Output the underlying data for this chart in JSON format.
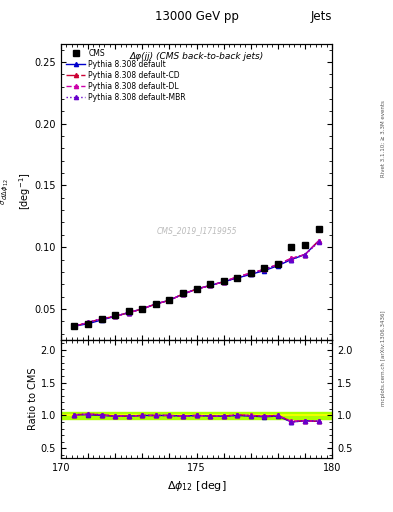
{
  "title_top": "13000 GeV pp",
  "title_right": "Jets",
  "plot_title": "Δφ(jj) (CMS back-to-back jets)",
  "xlabel": "Δφ$_{12}$ [deg]",
  "ylabel_ratio": "Ratio to CMS",
  "right_label": "mcplots.cern.ch [arXiv:1306.3436]",
  "right_label2": "Rivet 3.1.10; ≥ 3.3M events",
  "watermark": "CMS_2019_I1719955",
  "xlim": [
    170,
    180
  ],
  "ylim_main": [
    0.025,
    0.265
  ],
  "ylim_ratio": [
    0.35,
    2.15
  ],
  "yticks_main": [
    0.05,
    0.1,
    0.15,
    0.2,
    0.25
  ],
  "yticks_ratio": [
    0.5,
    1.0,
    1.5,
    2.0
  ],
  "xticks": [
    170,
    171,
    172,
    173,
    174,
    175,
    176,
    177,
    178,
    179,
    180
  ],
  "cms_x": [
    170.5,
    171.0,
    171.5,
    172.0,
    172.5,
    173.0,
    173.5,
    174.0,
    174.5,
    175.0,
    175.5,
    176.0,
    176.5,
    177.0,
    177.5,
    178.0,
    178.5,
    179.0,
    179.5
  ],
  "cms_y": [
    0.036,
    0.038,
    0.042,
    0.045,
    0.048,
    0.05,
    0.054,
    0.057,
    0.063,
    0.066,
    0.07,
    0.073,
    0.075,
    0.079,
    0.083,
    0.086,
    0.1,
    0.102,
    0.115
  ],
  "py_x": [
    170.5,
    171.0,
    171.5,
    172.0,
    172.5,
    173.0,
    173.5,
    174.0,
    174.5,
    175.0,
    175.5,
    176.0,
    176.5,
    177.0,
    177.5,
    178.0,
    178.5,
    179.0,
    179.5
  ],
  "py_default_y": [
    0.036,
    0.038,
    0.041,
    0.044,
    0.047,
    0.05,
    0.054,
    0.057,
    0.062,
    0.066,
    0.069,
    0.072,
    0.075,
    0.078,
    0.081,
    0.085,
    0.09,
    0.094,
    0.105
  ],
  "py_cd_y": [
    0.036,
    0.039,
    0.042,
    0.044,
    0.047,
    0.05,
    0.054,
    0.057,
    0.062,
    0.066,
    0.069,
    0.072,
    0.076,
    0.079,
    0.082,
    0.086,
    0.091,
    0.094,
    0.105
  ],
  "py_dl_y": [
    0.036,
    0.039,
    0.042,
    0.044,
    0.047,
    0.05,
    0.054,
    0.057,
    0.062,
    0.066,
    0.069,
    0.072,
    0.076,
    0.079,
    0.082,
    0.086,
    0.091,
    0.094,
    0.105
  ],
  "py_mbr_y": [
    0.036,
    0.039,
    0.042,
    0.044,
    0.047,
    0.05,
    0.054,
    0.057,
    0.062,
    0.066,
    0.069,
    0.072,
    0.075,
    0.078,
    0.082,
    0.086,
    0.09,
    0.094,
    0.104
  ],
  "ratio_default": [
    1.01,
    1.01,
    1.0,
    0.99,
    0.99,
    1.0,
    1.0,
    1.0,
    0.99,
    1.0,
    0.99,
    0.99,
    1.0,
    0.99,
    0.98,
    0.99,
    0.9,
    0.92,
    0.91
  ],
  "ratio_cd": [
    1.01,
    1.02,
    1.01,
    0.99,
    0.99,
    1.0,
    1.0,
    1.0,
    0.99,
    1.0,
    0.99,
    0.99,
    1.01,
    1.0,
    0.99,
    1.0,
    0.91,
    0.92,
    0.91
  ],
  "ratio_dl": [
    1.01,
    1.02,
    1.01,
    0.99,
    0.99,
    1.0,
    1.0,
    1.0,
    0.99,
    1.0,
    0.99,
    0.99,
    1.01,
    1.0,
    0.99,
    1.0,
    0.91,
    0.92,
    0.91
  ],
  "ratio_mbr": [
    1.01,
    1.02,
    1.01,
    0.99,
    0.99,
    1.0,
    1.0,
    1.0,
    0.99,
    1.0,
    0.99,
    0.99,
    1.0,
    0.99,
    0.99,
    1.0,
    0.9,
    0.92,
    0.91
  ],
  "color_default": "#0000cc",
  "color_cd": "#cc0033",
  "color_dl": "#cc00aa",
  "color_mbr": "#6600cc",
  "color_cms": "#000000",
  "color_ref_band": "#aaff00",
  "color_ref_line": "#ffff00"
}
